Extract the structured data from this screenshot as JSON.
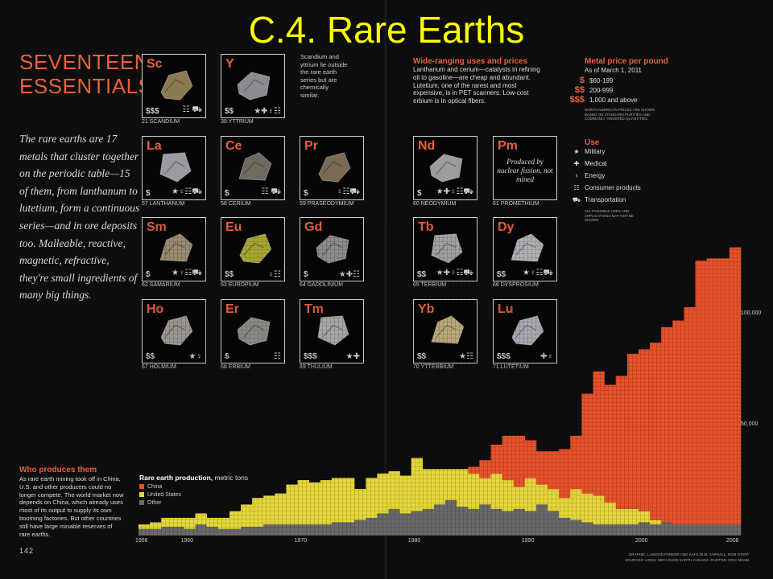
{
  "slide_title": "C.4. Rare Earths",
  "section_title": [
    "SEVENTEEN",
    "ESSENTIALS"
  ],
  "intro_text": "The rare earths are 17 metals that cluster together on the periodic table—15 of them, from lanthanum to lutetium, form a continuous series—and in ore deposits too. Malleable, reactive, magnetic, refractive, they're small ingredients of many big things.",
  "elements": [
    {
      "symbol": "Sc",
      "name": "21 SCANDIUM",
      "price": "$$$",
      "uses": "☷ ⛟",
      "color": "#8a7a52"
    },
    {
      "symbol": "Y",
      "name": "39 YTTRIUM",
      "price": "$$",
      "uses": "★✚♀☷",
      "color": "#8a8a90"
    },
    {
      "symbol": "La",
      "name": "57 LANTHANUM",
      "price": "$",
      "uses": "★♀☷⛟",
      "color": "#9a9aa2"
    },
    {
      "symbol": "Ce",
      "name": "58 CERIUM",
      "price": "$",
      "uses": "☷ ⛟",
      "color": "#6d6a60"
    },
    {
      "symbol": "Pr",
      "name": "59 PRASEODYMIUM",
      "price": "$",
      "uses": "♀☷⛟",
      "color": "#7a6a55"
    },
    {
      "symbol": "Nd",
      "name": "60 NEODYMIUM",
      "price": "$",
      "uses": "★✚♀☷⛟",
      "color": "#9c9c9c"
    },
    {
      "symbol": "Pm",
      "name": "61 PROMETHIUM",
      "price": "",
      "uses": "",
      "color": ""
    },
    {
      "symbol": "Sm",
      "name": "62 SAMARIUM",
      "price": "$",
      "uses": "★♀☷⛟",
      "color": "#9a8a72"
    },
    {
      "symbol": "Eu",
      "name": "63 EUROPIUM",
      "price": "$$",
      "uses": "♀☷",
      "color": "#a8a832"
    },
    {
      "symbol": "Gd",
      "name": "64 GADOLINIUM",
      "price": "$",
      "uses": "★✚☷",
      "color": "#8c8c8c"
    },
    {
      "symbol": "Tb",
      "name": "65 TERBIUM",
      "price": "$$",
      "uses": "★✚♀☷⛟",
      "color": "#a0a0a0"
    },
    {
      "symbol": "Dy",
      "name": "66 DYSPROSIUM",
      "price": "$$",
      "uses": "★♀☷⛟",
      "color": "#b0b0b4"
    },
    {
      "symbol": "Ho",
      "name": "67 HOLMIUM",
      "price": "$$",
      "uses": "★♀",
      "color": "#9a9690"
    },
    {
      "symbol": "Er",
      "name": "68 ERBIUM",
      "price": "$",
      "uses": "☷",
      "color": "#8c8a86"
    },
    {
      "symbol": "Tm",
      "name": "69 THULIUM",
      "price": "$$$",
      "uses": "★✚",
      "color": "#a6a6a6"
    },
    {
      "symbol": "Yb",
      "name": "70 YTTERBIUM",
      "price": "$$",
      "uses": "★☷",
      "color": "#b8a878"
    },
    {
      "symbol": "Lu",
      "name": "71 LUTETIUM",
      "price": "$$$",
      "uses": "✚♀",
      "color": "#a8a8b0"
    }
  ],
  "promethium_note": "Produced by nuclear fission, not mined",
  "scandium_yttrium_note": "Scandium and yttrium lie outside the rare earth series but are chemically similar.",
  "uses_section": {
    "title": "Wide-ranging uses and prices",
    "body": "Lanthanum and cerium—catalysts in refining oil to gasoline—are cheap and abundant. Lutetium, one of the rarest and most expensive, is in PET scanners. Low-cost erbium is in optical fibers."
  },
  "metal_price": {
    "title": "Metal price per pound",
    "subtitle": "As of March 1, 2011",
    "tiers": [
      {
        "symbol": "$",
        "range": "$60-199"
      },
      {
        "symbol": "$$",
        "range": "200-999"
      },
      {
        "symbol": "$$$",
        "range": "1,000 and above"
      }
    ],
    "note": "NORTH AMERICAN PRICES ARE SHOWN BASED ON STANDARD PURITIES AND COMMONLY ORDERED QUANTITIES."
  },
  "use_legend": {
    "title": "Use",
    "items": [
      {
        "icon": "★",
        "label": "Military"
      },
      {
        "icon": "✚",
        "label": "Medical"
      },
      {
        "icon": "♀",
        "label": "Energy"
      },
      {
        "icon": "☷",
        "label": "Consumer products"
      },
      {
        "icon": "⛟",
        "label": "Transportation"
      }
    ],
    "note": "ALL POSSIBLE USES AND APPLICATIONS MAY NOT BE SHOWN."
  },
  "who_produces": {
    "title": "Who produces them",
    "body": "As rare earth mining took off in China, U.S. and other producers could no longer compete. The world market now depends on China, which already uses most of its output to supply its own booming factories. But other countries still have large minable reserves of rare earths."
  },
  "page_number": "142",
  "credits": [
    "GRAPHIC: LAWSON PARKER AND KAITLIN M. YARNALL, NGM STAFF",
    "SOURCES: USGS; HEFA RARE EARTH CANADA. PHOTOS: NICK MANN"
  ],
  "colors": {
    "china": "#e8512c",
    "us": "#e6d83a",
    "other": "#6a6a6a",
    "accent": "#e8603c",
    "title": "#ffff00"
  },
  "chart_data": {
    "type": "area",
    "title": "Rare earth production,",
    "subtitle": "metric tons",
    "x": [
      1956,
      1957,
      1958,
      1959,
      1960,
      1961,
      1962,
      1963,
      1964,
      1965,
      1966,
      1967,
      1968,
      1969,
      1970,
      1971,
      1972,
      1973,
      1974,
      1975,
      1976,
      1977,
      1978,
      1979,
      1980,
      1981,
      1982,
      1983,
      1984,
      1985,
      1986,
      1987,
      1988,
      1989,
      1990,
      1991,
      1992,
      1993,
      1994,
      1995,
      1996,
      1997,
      1998,
      1999,
      2000,
      2001,
      2002,
      2003,
      2004,
      2005,
      2006,
      2007,
      2008
    ],
    "series": [
      {
        "name": "China",
        "values": [
          0,
          0,
          0,
          0,
          0,
          0,
          0,
          0,
          0,
          0,
          0,
          0,
          0,
          0,
          0,
          0,
          0,
          0,
          0,
          0,
          0,
          0,
          0,
          0,
          0,
          0,
          0,
          0,
          0,
          3000,
          8000,
          13000,
          20000,
          23000,
          17000,
          15000,
          17000,
          22000,
          24000,
          45000,
          56000,
          53000,
          60000,
          70000,
          73000,
          80000,
          88000,
          92000,
          98000,
          119000,
          120000,
          120000,
          125000
        ]
      },
      {
        "name": "United States",
        "values": [
          2000,
          3000,
          4000,
          4000,
          5000,
          5000,
          4000,
          5000,
          8000,
          10000,
          13000,
          13000,
          14000,
          18000,
          20000,
          19000,
          20000,
          20000,
          20000,
          14000,
          18000,
          18000,
          17000,
          17000,
          24000,
          18000,
          16000,
          14000,
          17000,
          16000,
          12000,
          16000,
          14000,
          10000,
          15000,
          9000,
          10000,
          9000,
          14000,
          13000,
          13000,
          10000,
          7000,
          7000,
          5000,
          2000,
          0,
          0,
          0,
          0,
          0,
          0,
          0
        ]
      },
      {
        "name": "Other",
        "values": [
          3000,
          3000,
          4000,
          4000,
          3000,
          5000,
          4000,
          3000,
          3000,
          4000,
          4000,
          5000,
          5000,
          5000,
          5000,
          5000,
          5000,
          6000,
          6000,
          7000,
          8000,
          10000,
          12000,
          10000,
          11000,
          12000,
          14000,
          16000,
          13000,
          12000,
          14000,
          12000,
          11000,
          12000,
          11000,
          14000,
          11000,
          8000,
          7000,
          6000,
          5000,
          5000,
          5000,
          5000,
          6000,
          5000,
          6000,
          5000,
          5000,
          5000,
          5000,
          5000,
          5000
        ]
      }
    ],
    "xticks": [
      1956,
      1960,
      1970,
      1980,
      1990,
      2000,
      2008
    ],
    "yticks": [
      {
        "value": 50000,
        "label": "50,000"
      },
      {
        "value": 100000,
        "label": "100,000"
      }
    ],
    "ylim": [
      0,
      140000
    ]
  }
}
